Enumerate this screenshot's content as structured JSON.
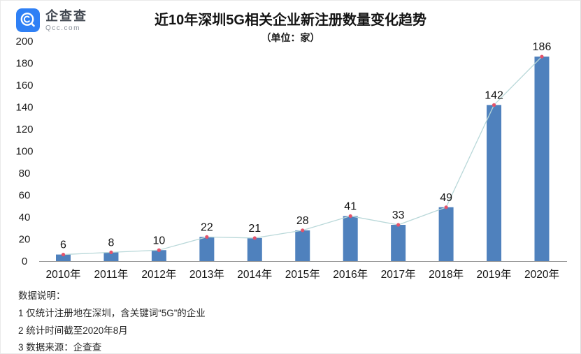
{
  "logo": {
    "name": "企查查",
    "domain": "Qcc.com",
    "badge_color": "#2f80f5"
  },
  "header": {
    "title": "近10年深圳5G相关企业新注册数量变化趋势",
    "subtitle": "（单位：家）"
  },
  "chart_data": {
    "type": "bar",
    "title": "近10年深圳5G相关企业新注册数量变化趋势",
    "subtitle": "（单位：家）",
    "categories": [
      "2010年",
      "2011年",
      "2012年",
      "2013年",
      "2014年",
      "2015年",
      "2016年",
      "2017年",
      "2018年",
      "2019年",
      "2020年"
    ],
    "values": [
      6,
      8,
      10,
      22,
      21,
      28,
      41,
      33,
      49,
      142,
      186
    ],
    "overlay_line": true,
    "ylim": [
      0,
      200
    ],
    "ytick_step": 20,
    "grid": false,
    "legend_position": "none",
    "xlabel": "",
    "ylabel": "",
    "bar_color": "#4f81bd",
    "line_color": "#b9d8d9",
    "marker_color": "#e4536b",
    "axis_color": "#9b9b9b",
    "text_color": "#1a1a1a"
  },
  "footer": {
    "heading": "数据说明：",
    "notes": [
      "1 仅统计注册地在深圳，含关键词“5G”的企业",
      "2 统计时间截至2020年8月",
      "3 数据来源：企查查"
    ]
  }
}
